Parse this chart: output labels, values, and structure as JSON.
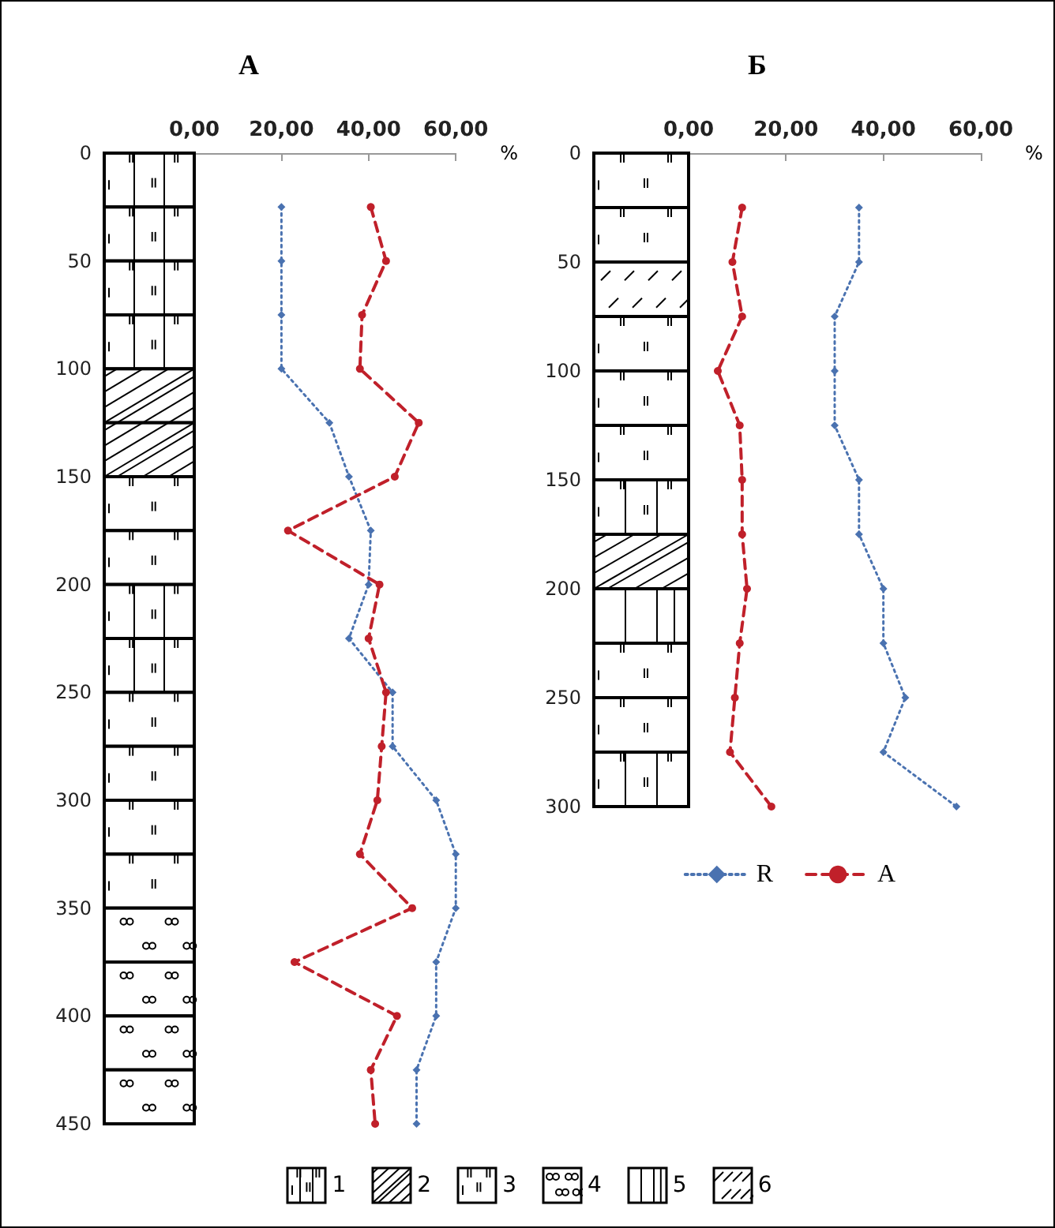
{
  "chart_data": [
    {
      "type": "line",
      "title": "А",
      "xlabel": "%",
      "xlim": [
        0,
        60
      ],
      "xticks": [
        {
          "value": 0,
          "label": "0,00"
        },
        {
          "value": 20,
          "label": "20,00"
        },
        {
          "value": 40,
          "label": "40,00"
        },
        {
          "value": 60,
          "label": "60,00"
        }
      ],
      "ylim": [
        450,
        0
      ],
      "yticks": [
        0,
        50,
        100,
        150,
        200,
        250,
        300,
        350,
        400,
        450
      ],
      "grid": false,
      "series": [
        {
          "color": "#4a72b0",
          "marker": "diamond",
          "line_style": "dotted",
          "x": [
            20,
            20,
            20,
            20,
            31,
            35.5,
            40.5,
            40,
            35.5,
            45.5,
            45.5,
            55.5,
            60,
            60,
            55.5,
            55.5,
            51,
            51
          ],
          "values": [
            25,
            50,
            75,
            100,
            125,
            150,
            175,
            200,
            225,
            250,
            275,
            300,
            325,
            350,
            375,
            400,
            425,
            450
          ]
        },
        {
          "color": "#c0202a",
          "marker": "circle",
          "line_style": "dashed",
          "x": [
            40.5,
            44,
            38.5,
            38,
            51.5,
            46,
            21.5,
            42.5,
            40,
            44,
            43,
            42,
            38,
            50,
            23,
            46.5,
            40.5,
            41.5
          ],
          "values": [
            25,
            50,
            75,
            100,
            125,
            150,
            175,
            200,
            225,
            250,
            275,
            300,
            325,
            350,
            375,
            400,
            425,
            450
          ]
        }
      ]
    },
    {
      "type": "line",
      "title": "Б",
      "xlabel": "%",
      "xlim": [
        0,
        60
      ],
      "xticks": [
        {
          "value": 0,
          "label": "0,00"
        },
        {
          "value": 20,
          "label": "20,00"
        },
        {
          "value": 40,
          "label": "40,00"
        },
        {
          "value": 60,
          "label": "60,00"
        }
      ],
      "ylim": [
        300,
        0
      ],
      "yticks": [
        0,
        50,
        100,
        150,
        200,
        250,
        300
      ],
      "grid": false,
      "legend": "bottom",
      "series": [
        {
          "name": "R",
          "color": "#4a72b0",
          "marker": "diamond",
          "line_style": "dotted",
          "x": [
            35,
            35,
            30,
            30,
            30,
            35,
            35,
            40,
            40,
            44.5,
            40,
            55
          ],
          "values": [
            25,
            50,
            75,
            100,
            125,
            150,
            175,
            200,
            225,
            250,
            275,
            300
          ]
        },
        {
          "name": "A",
          "color": "#c0202a",
          "marker": "circle",
          "line_style": "dashed",
          "x": [
            11,
            9,
            11,
            6,
            10.5,
            11,
            11,
            12,
            10.5,
            9.5,
            8.5,
            17
          ],
          "values": [
            25,
            50,
            75,
            100,
            125,
            150,
            175,
            200,
            225,
            250,
            275,
            300
          ]
        }
      ],
      "annotations": [
        "1",
        "2",
        "3",
        "4",
        "5",
        "6"
      ]
    }
  ]
}
